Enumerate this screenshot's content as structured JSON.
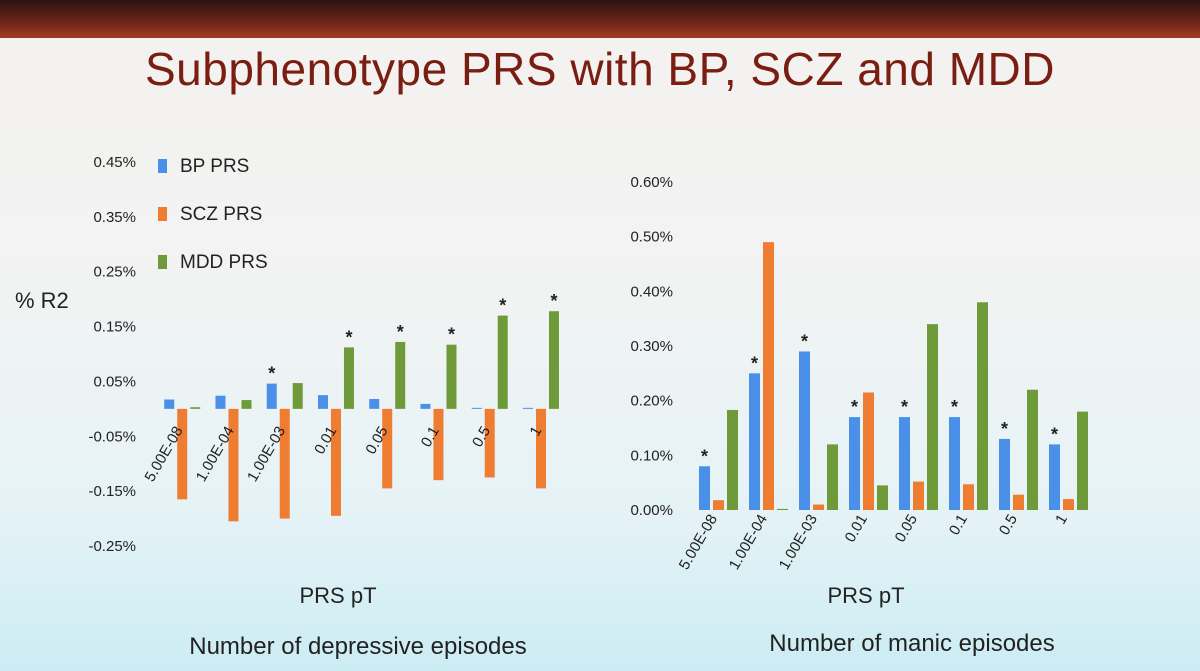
{
  "slide": {
    "title": "Subphenotype PRS with BP, SCZ and MDD"
  },
  "colors": {
    "bp": "#4a8fe8",
    "scz": "#ef7d31",
    "mdd": "#6f9a3a"
  },
  "chart_data": [
    {
      "type": "bar",
      "title": "",
      "caption": "Number of depressive episodes",
      "xlabel": "PRS pT",
      "ylabel": "% R2",
      "ylim": [
        -0.0025,
        0.0045
      ],
      "yticks": [
        "0.45%",
        "0.35%",
        "0.25%",
        "0.15%",
        "0.05%",
        "-0.05%",
        "-0.15%",
        "-0.25%"
      ],
      "ytick_values": [
        0.0045,
        0.0035,
        0.0025,
        0.0015,
        0.0005,
        -0.0005,
        -0.0015,
        -0.0025
      ],
      "categories": [
        "5.00E-08",
        "1.00E-04",
        "1.00E-03",
        "0.01",
        "0.05",
        "0.1",
        "0.5",
        "1"
      ],
      "legend": {
        "placement": "top-left",
        "entries": [
          "BP PRS",
          "SCZ PRS",
          "MDD PRS"
        ]
      },
      "series": [
        {
          "name": "BP PRS",
          "values": [
            0.00017,
            0.00024,
            0.00046,
            0.00025,
            0.00018,
            9e-05,
            0,
            0
          ]
        },
        {
          "name": "SCZ PRS",
          "values": [
            -0.00165,
            -0.00205,
            -0.002,
            -0.00195,
            -0.00145,
            -0.0013,
            -0.00125,
            -0.00145
          ]
        },
        {
          "name": "MDD PRS",
          "values": [
            3e-05,
            0.00016,
            0.00047,
            0.00112,
            0.00122,
            0.00117,
            0.0017,
            0.00178
          ]
        }
      ],
      "significance": [
        "",
        "",
        "*",
        "*",
        "*",
        "*",
        "*",
        "*"
      ],
      "significance_series": [
        "",
        "",
        "BP PRS",
        "MDD PRS",
        "MDD PRS",
        "MDD PRS",
        "MDD PRS",
        "MDD PRS"
      ]
    },
    {
      "type": "bar",
      "title": "",
      "caption": "Number of manic episodes",
      "xlabel": "PRS pT",
      "ylabel": "",
      "ylim": [
        0,
        0.006
      ],
      "yticks": [
        "0.60%",
        "0.50%",
        "0.40%",
        "0.30%",
        "0.20%",
        "0.10%",
        "0.00%"
      ],
      "ytick_values": [
        0.006,
        0.005,
        0.004,
        0.003,
        0.002,
        0.001,
        0
      ],
      "categories": [
        "5.00E-08",
        "1.00E-04",
        "1.00E-03",
        "0.01",
        "0.05",
        "0.1",
        "0.5",
        "1"
      ],
      "series": [
        {
          "name": "BP PRS",
          "values": [
            0.0008,
            0.0025,
            0.0029,
            0.0017,
            0.0017,
            0.0017,
            0.0013,
            0.0012
          ]
        },
        {
          "name": "SCZ PRS",
          "values": [
            0.00018,
            0.0049,
            0.0001,
            0.00215,
            0.00052,
            0.00047,
            0.00028,
            0.0002
          ]
        },
        {
          "name": "MDD PRS",
          "values": [
            0.00183,
            2e-05,
            0.0012,
            0.00045,
            0.0034,
            0.0038,
            0.0022,
            0.0018
          ]
        }
      ],
      "significance": [
        "*",
        "*",
        "*",
        "*",
        "*",
        "*",
        "*",
        "*"
      ],
      "significance_series": [
        "BP PRS",
        "BP PRS",
        "BP PRS",
        "BP PRS",
        "BP PRS",
        "BP PRS",
        "BP PRS",
        "BP PRS"
      ]
    }
  ]
}
